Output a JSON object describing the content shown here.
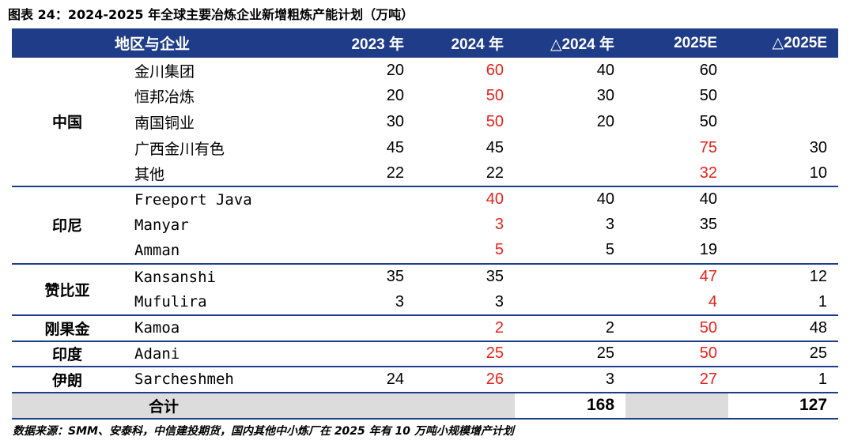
{
  "title": "图表 24：2024-2025 年全球主要冶炼企业新增粗炼产能计划（万吨）",
  "headers": {
    "region": "地区与企业",
    "y2023": "2023 年",
    "y2024": "2024 年",
    "d2024": "△2024 年",
    "y2025": "2025E",
    "d2025": "△2025E"
  },
  "groups": [
    {
      "region": "中国",
      "rows": [
        {
          "company": "金川集团",
          "y2023": "20",
          "y2024": "60",
          "d2024": "40",
          "y2025": "60",
          "d2025": "",
          "red2024": true,
          "red2025": false
        },
        {
          "company": "恒邦冶炼",
          "y2023": "20",
          "y2024": "50",
          "d2024": "30",
          "y2025": "50",
          "d2025": "",
          "red2024": true,
          "red2025": false
        },
        {
          "company": "南国铜业",
          "y2023": "30",
          "y2024": "50",
          "d2024": "20",
          "y2025": "50",
          "d2025": "",
          "red2024": true,
          "red2025": false
        },
        {
          "company": "广西金川有色",
          "y2023": "45",
          "y2024": "45",
          "d2024": "",
          "y2025": "75",
          "d2025": "30",
          "red2024": false,
          "red2025": true
        },
        {
          "company": "其他",
          "y2023": "22",
          "y2024": "22",
          "d2024": "",
          "y2025": "32",
          "d2025": "10",
          "red2024": false,
          "red2025": true
        }
      ]
    },
    {
      "region": "印尼",
      "rows": [
        {
          "company": "Freeport Java",
          "y2023": "",
          "y2024": "40",
          "d2024": "40",
          "y2025": "40",
          "d2025": "",
          "red2024": true,
          "red2025": false
        },
        {
          "company": "Manyar",
          "y2023": "",
          "y2024": "3",
          "d2024": "3",
          "y2025": "35",
          "d2025": "",
          "red2024": true,
          "red2025": false
        },
        {
          "company": "Amman",
          "y2023": "",
          "y2024": "5",
          "d2024": "5",
          "y2025": "19",
          "d2025": "",
          "red2024": true,
          "red2025": false
        }
      ]
    },
    {
      "region": "赞比亚",
      "rows": [
        {
          "company": "Kansanshi",
          "y2023": "35",
          "y2024": "35",
          "d2024": "",
          "y2025": "47",
          "d2025": "12",
          "red2024": false,
          "red2025": true
        },
        {
          "company": "Mufulira",
          "y2023": "3",
          "y2024": "3",
          "d2024": "",
          "y2025": "4",
          "d2025": "1",
          "red2024": false,
          "red2025": true
        }
      ]
    },
    {
      "region": "刚果金",
      "rows": [
        {
          "company": "Kamoa",
          "y2023": "",
          "y2024": "2",
          "d2024": "2",
          "y2025": "50",
          "d2025": "48",
          "red2024": true,
          "red2025": true
        }
      ]
    },
    {
      "region": "印度",
      "rows": [
        {
          "company": "Adani",
          "y2023": "",
          "y2024": "25",
          "d2024": "25",
          "y2025": "50",
          "d2025": "25",
          "red2024": true,
          "red2025": true
        }
      ]
    },
    {
      "region": "伊朗",
      "rows": [
        {
          "company": "Sarcheshmeh",
          "y2023": "24",
          "y2024": "26",
          "d2024": "3",
          "y2025": "27",
          "d2025": "1",
          "red2024": true,
          "red2025": true
        }
      ]
    }
  ],
  "total": {
    "label": "合计",
    "d2024": "168",
    "d2025": "127"
  },
  "source": "数据来源：SMM、安泰科，中信建投期货，国内其他中小炼厂在 2025 年有 10 万吨小规模增产计划",
  "colors": {
    "header_bg": "#1F3C88",
    "highlight_red": "#E8231B",
    "total_bg": "#DCDCDC"
  }
}
